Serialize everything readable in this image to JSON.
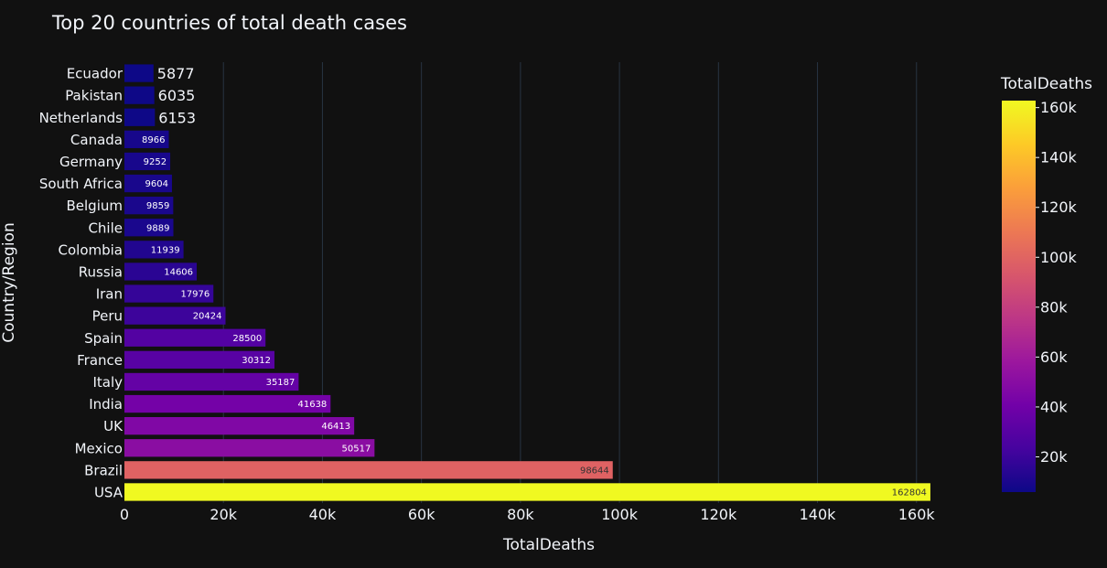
{
  "chart_data": {
    "type": "bar",
    "orientation": "horizontal",
    "title": "Top 20 countries of total death cases",
    "xlabel": "TotalDeaths",
    "ylabel": "Country/Region",
    "xlim": [
      0,
      163000
    ],
    "x_ticks": [
      0,
      20000,
      40000,
      60000,
      80000,
      100000,
      120000,
      140000,
      160000
    ],
    "x_tick_labels": [
      "0",
      "20k",
      "40k",
      "60k",
      "80k",
      "100k",
      "120k",
      "140k",
      "160k"
    ],
    "grid": "vertical",
    "categories": [
      "USA",
      "Brazil",
      "Mexico",
      "UK",
      "India",
      "Italy",
      "France",
      "Spain",
      "Peru",
      "Iran",
      "Russia",
      "Colombia",
      "Chile",
      "Belgium",
      "South Africa",
      "Germany",
      "Canada",
      "Netherlands",
      "Pakistan",
      "Ecuador"
    ],
    "values": [
      162804,
      98644,
      50517,
      46413,
      41638,
      35187,
      30312,
      28500,
      20424,
      17976,
      14606,
      11939,
      9889,
      9859,
      9604,
      9252,
      8966,
      6153,
      6035,
      5877
    ],
    "colorscale": "plasma",
    "colorbar": {
      "title": "TotalDeaths",
      "range": [
        5877,
        162804
      ],
      "ticks": [
        20000,
        40000,
        60000,
        80000,
        100000,
        120000,
        140000,
        160000
      ],
      "tick_labels": [
        "20k",
        "40k",
        "60k",
        "80k",
        "100k",
        "120k",
        "140k",
        "160k"
      ]
    }
  },
  "colors": {
    "background": "#111111",
    "text": "#f2f5fa",
    "grid": "#283442"
  }
}
